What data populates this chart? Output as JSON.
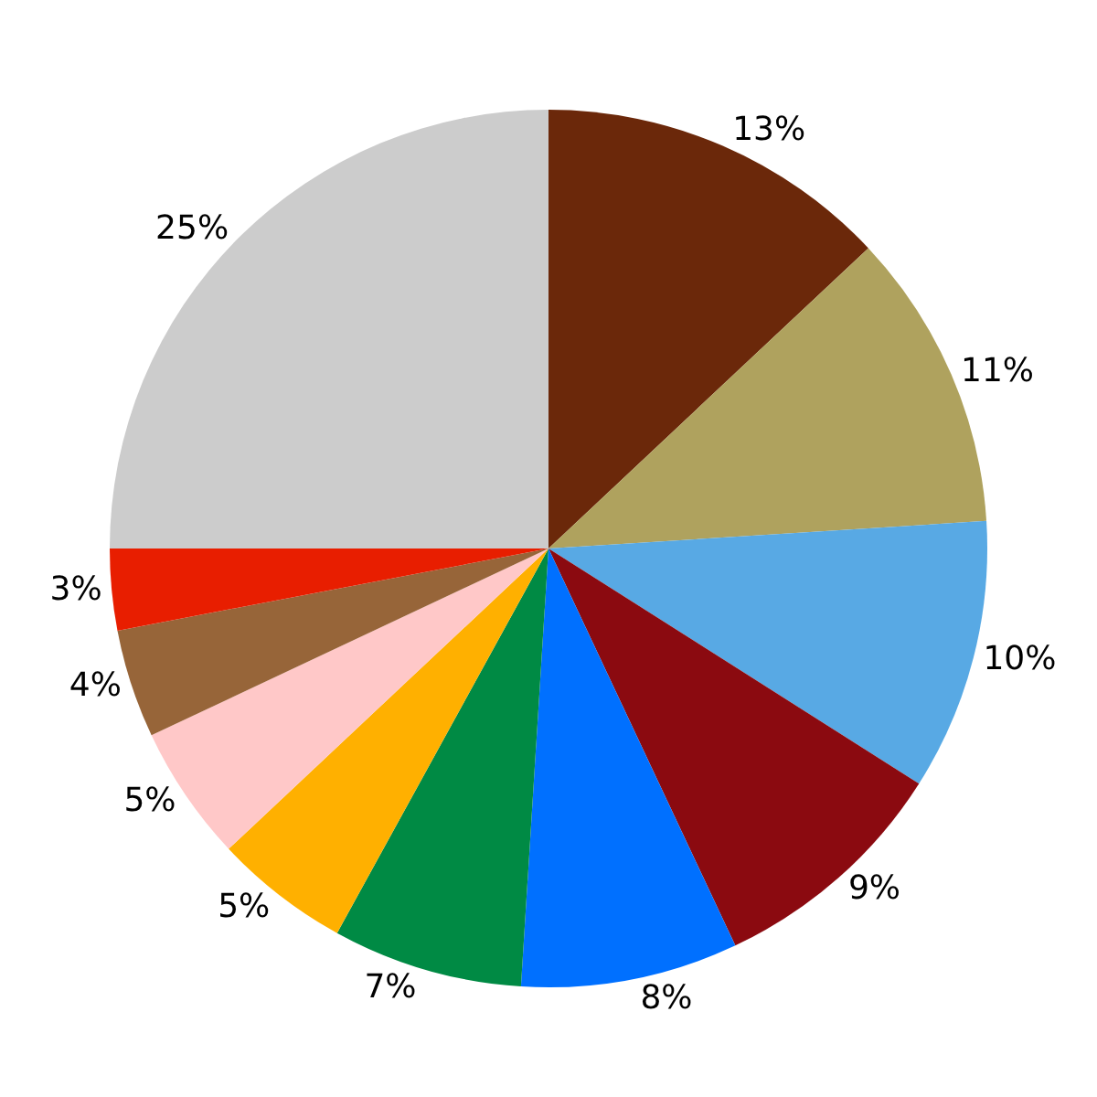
{
  "chart_data": {
    "type": "pie",
    "categories": [
      null,
      null,
      null,
      null,
      null,
      null,
      null,
      null,
      null,
      null,
      null
    ],
    "values": [
      13,
      11,
      10,
      9,
      8,
      7,
      5,
      5,
      4,
      3,
      25
    ],
    "value_labels": [
      "13%",
      "11%",
      "10%",
      "9%",
      "8%",
      "7%",
      "5%",
      "5%",
      "4%",
      "3%",
      "25%"
    ],
    "colors": [
      "#6b280a",
      "#afa25e",
      "#58a9e4",
      "#8b0a10",
      "#0070ff",
      "#008a44",
      "#ffb000",
      "#ffc8c8",
      "#976539",
      "#e81e00",
      "#cccccc"
    ],
    "legend": false
  }
}
